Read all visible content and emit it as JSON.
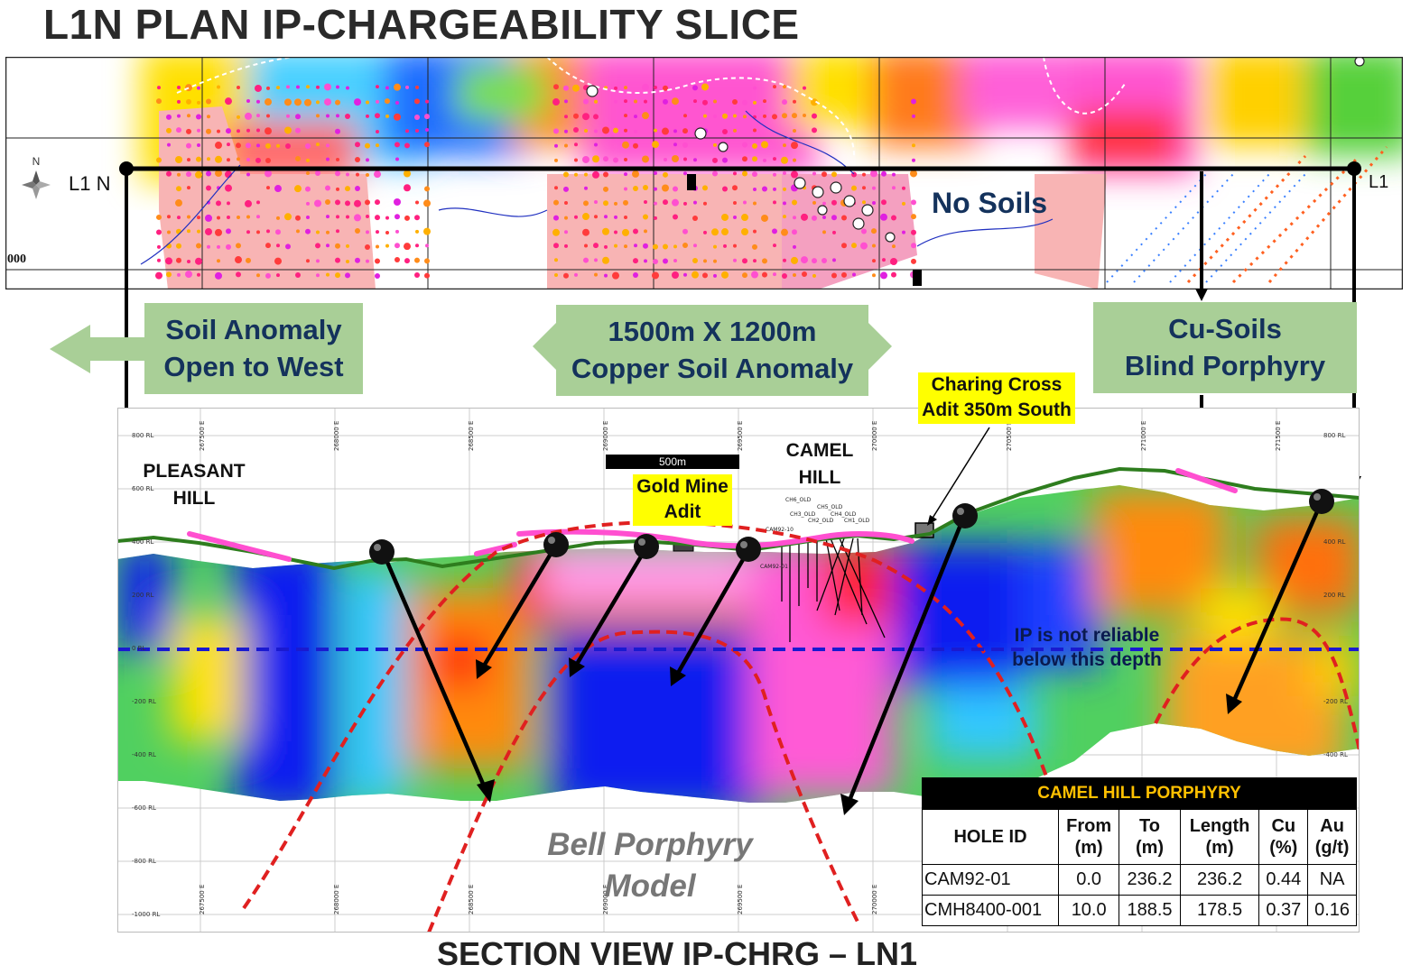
{
  "page": {
    "title": "L1N PLAN IP-CHARGEABILITY SLICE",
    "bottom_title": "SECTION VIEW IP-CHRG – LN1"
  },
  "plan_map": {
    "line_label_left": "L1 N",
    "line_label_right": "L1",
    "north_label": "N",
    "no_soils_label": "No Soils",
    "coord_label": "000"
  },
  "callouts": {
    "west": "Soil Anomaly\nOpen to West",
    "center": "1500m X 1200m\nCopper Soil Anomaly",
    "east": "Cu-Soils\nBlind Porphyry"
  },
  "section": {
    "pleasant_hill": "PLEASANT\nHILL",
    "camel_hill": "CAMEL\nHILL",
    "gold_mine": "Gold Mine\nAdit",
    "charing_cross": "Charing Cross\nAdit 350m South",
    "scale_bar": "500m",
    "ip_note": "IP is not reliable\nbelow this depth",
    "bell_model": "Bell Porphyry\nModel",
    "rl_labels": [
      "800 RL",
      "600 RL",
      "400 RL",
      "200 RL",
      "0 RL",
      "-200 RL",
      "-400 RL",
      "-600 RL",
      "-800 RL",
      "-1000 RL"
    ],
    "easting_labels": [
      "267500 E",
      "268000 E",
      "268500 E",
      "269000 E",
      "269500 E",
      "270000 E",
      "270500 E",
      "271000 E",
      "271500 E"
    ],
    "drill_labels": [
      "CH6_OLD",
      "CH5_OLD",
      "CH3_OLD",
      "CH4_OLD",
      "CH2_OLD",
      "CH1_OLD",
      "CAM92-10",
      "CAM92-01"
    ]
  },
  "colors": {
    "callout_fill": "#a9cf97",
    "callout_text": "#14325c",
    "topography": "#2e7d1e",
    "soil_anomaly": "#ff4fd0",
    "model_outline": "#e02020",
    "depth_line": "#1a1ad0",
    "table_header_text": "#ffc000"
  },
  "table": {
    "title": "CAMEL HILL PORPHYRY",
    "headers": [
      "HOLE ID",
      "From\n(m)",
      "To\n(m)",
      "Length\n(m)",
      "Cu\n(%)",
      "Au\n(g/t)"
    ],
    "rows": [
      [
        "CAM92-01",
        "0.0",
        "236.2",
        "236.2",
        "0.44",
        "NA"
      ],
      [
        "CMH8400-001",
        "10.0",
        "188.5",
        "178.5",
        "0.37",
        "0.16"
      ]
    ]
  }
}
